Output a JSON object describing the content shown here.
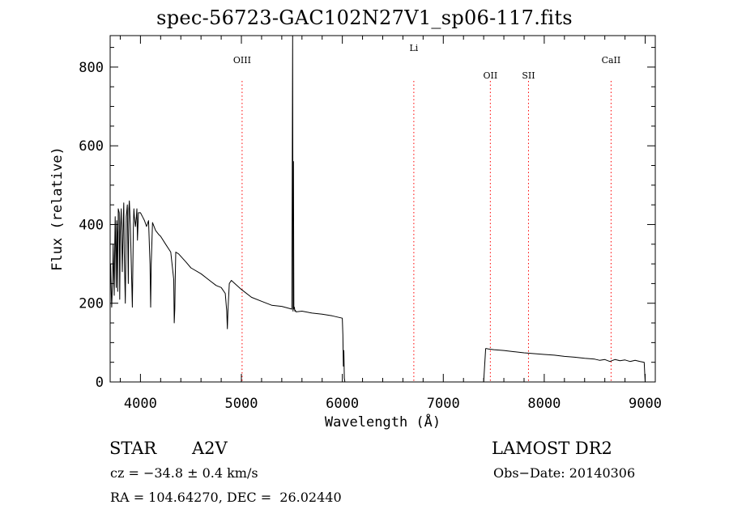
{
  "chart_data": {
    "type": "line",
    "title": "spec-56723-GAC102N27V1_sp06-117.fits",
    "xlabel": "Wavelength (Å)",
    "ylabel": "Flux (relative)",
    "xlim": [
      3700,
      9100
    ],
    "ylim": [
      0,
      880
    ],
    "xticks": [
      4000,
      5000,
      6000,
      7000,
      8000,
      9000
    ],
    "yticks": [
      0,
      200,
      400,
      600,
      800
    ],
    "grid": false,
    "series": [
      {
        "x": [
          3700,
          3705,
          3710,
          3715,
          3720,
          3725,
          3730,
          3735,
          3740,
          3745,
          3750,
          3760,
          3765,
          3770,
          3775,
          3780,
          3790,
          3795,
          3800,
          3810,
          3820,
          3830,
          3835,
          3840,
          3850,
          3860,
          3870,
          3880,
          3885,
          3890,
          3900,
          3920,
          3930,
          3935,
          3940,
          3950,
          3960,
          3965,
          3970,
          3980,
          4000,
          4020,
          4040,
          4060,
          4080,
          4095,
          4101,
          4107,
          4120,
          4150,
          4180,
          4200,
          4250,
          4300,
          4330,
          4335,
          4340,
          4345,
          4350,
          4380,
          4450,
          4500,
          4600,
          4700,
          4750,
          4800,
          4840,
          4855,
          4861,
          4867,
          4880,
          4900,
          5000,
          5100,
          5200,
          5300,
          5400,
          5500,
          5508,
          5512,
          5516,
          5520,
          5525,
          5530,
          5535,
          5540,
          5600,
          5700,
          5800,
          5900,
          6000,
          6005,
          6010,
          6015,
          6020,
          6025,
          6030,
          6035,
          6040,
          6045,
          6050,
          6055,
          6060,
          6065,
          6070,
          7400,
          7420,
          7430,
          7440,
          7500,
          7600,
          7700,
          7800,
          7900,
          8000,
          8100,
          8200,
          8300,
          8400,
          8500,
          8550,
          8600,
          8650,
          8700,
          8750,
          8800,
          8850,
          8900,
          8950,
          8990,
          9000
        ],
        "values": [
          250,
          300,
          240,
          190,
          230,
          260,
          350,
          280,
          220,
          340,
          420,
          240,
          410,
          380,
          230,
          440,
          430,
          210,
          380,
          440,
          280,
          410,
          455,
          330,
          200,
          420,
          450,
          250,
          440,
          460,
          400,
          190,
          400,
          440,
          420,
          395,
          420,
          440,
          360,
          430,
          430,
          420,
          410,
          395,
          410,
          300,
          190,
          300,
          405,
          385,
          375,
          370,
          350,
          330,
          260,
          150,
          185,
          270,
          330,
          325,
          305,
          290,
          275,
          255,
          245,
          240,
          225,
          180,
          135,
          180,
          250,
          258,
          235,
          215,
          205,
          195,
          192,
          185,
          880,
          180,
          560,
          185,
          190,
          180,
          182,
          178,
          180,
          175,
          172,
          168,
          162,
          120,
          40,
          80,
          10,
          0,
          0,
          0,
          0,
          0,
          0,
          0,
          0,
          0,
          0,
          0,
          85,
          85,
          84,
          82,
          80,
          77,
          74,
          72,
          70,
          68,
          65,
          63,
          60,
          58,
          55,
          57,
          52,
          57,
          54,
          56,
          52,
          55,
          52,
          50,
          0
        ]
      }
    ],
    "lines": [
      {
        "label": "OIII",
        "x": 5007
      },
      {
        "label": "Li",
        "x": 6708
      },
      {
        "label": "OII",
        "x": 7466
      },
      {
        "label": "SII",
        "x": 7844
      },
      {
        "label": "CaII",
        "x": 8662
      }
    ],
    "line_color": "#ff0000"
  },
  "info": {
    "obj_class": "STAR",
    "obj_type": "A2V",
    "cz": "cz = −34.8 ± 0.4 km/s",
    "radec": "RA = 104.64270, DEC =  26.02440",
    "survey": "LAMOST DR2",
    "obs_date": "Obs−Date: 20140306"
  }
}
